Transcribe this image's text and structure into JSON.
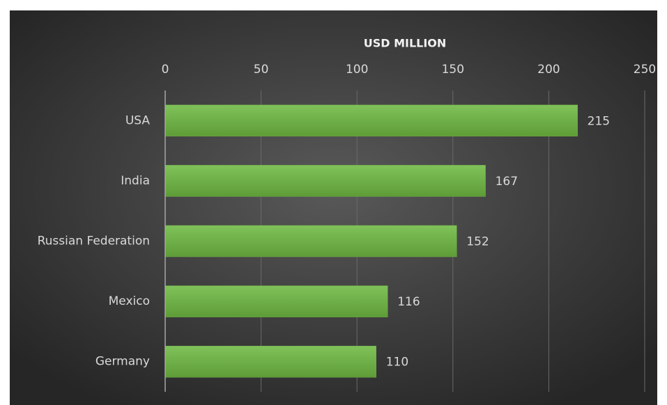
{
  "chart_data": {
    "type": "bar",
    "orientation": "horizontal",
    "x_axis_label": "USD MILLION",
    "categories": [
      "USA",
      "India",
      "Russian Federation",
      "Mexico",
      "Germany"
    ],
    "values": [
      215,
      167,
      152,
      116,
      110
    ],
    "color": "#70ad47",
    "xlim": [
      0,
      250
    ],
    "xticks": [
      0,
      50,
      100,
      150,
      200,
      250
    ],
    "grid": true
  }
}
